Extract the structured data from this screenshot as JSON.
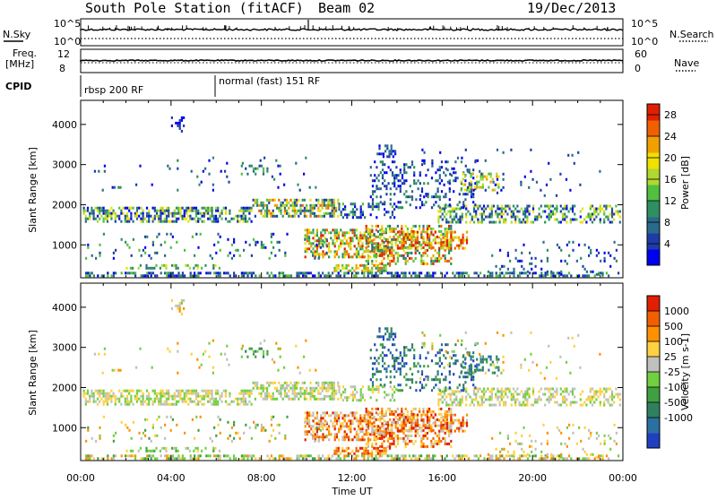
{
  "header": {
    "station": "South Pole Station (fitACF)",
    "beam": "Beam 02",
    "date": "19/Dec/2013"
  },
  "aux": {
    "nsky_label": "N.Sky",
    "nsearch_label": "N.Search",
    "freq_label_line1": "Freq.",
    "freq_label_line2": "[MHz]",
    "nave_label": "Nave",
    "cpid_label": "CPID",
    "power_ticks": [
      "10^5",
      "10^0"
    ],
    "power_ticks_right": [
      "10^5",
      "10^0"
    ],
    "freq_ticks": [
      "12",
      "8"
    ],
    "nave_ticks": [
      "60",
      "0"
    ],
    "cpid_1": "rbsp 200 RF",
    "cpid_2": "normal (fast) 151 RF"
  },
  "chart_data": [
    {
      "type": "heatmap",
      "title": "",
      "xlabel": "Time UT",
      "ylabel": "Slant Range [km]",
      "xlim": [
        0,
        24
      ],
      "ylim": [
        180,
        4600
      ],
      "x_ticks": [
        "00:00",
        "04:00",
        "08:00",
        "12:00",
        "16:00",
        "20:00",
        "00:00"
      ],
      "y_ticks": [
        "1000",
        "2000",
        "3000",
        "4000"
      ],
      "y_tick_values": [
        1000,
        2000,
        3000,
        4000
      ],
      "colorbar": {
        "label": "Power [dB]",
        "ticks": [
          "4",
          "8",
          "12",
          "16",
          "20",
          "24",
          "28"
        ],
        "range": [
          0,
          30
        ],
        "colors": [
          "#0000f0",
          "#1e3ca8",
          "#2a6a8a",
          "#2e8f60",
          "#50c040",
          "#b0d830",
          "#f0e000",
          "#f0a000",
          "#f06000",
          "#e02000"
        ]
      }
    },
    {
      "type": "heatmap",
      "title": "",
      "xlabel": "Time UT",
      "ylabel": "Slant Range [km]",
      "xlim": [
        0,
        24
      ],
      "ylim": [
        180,
        4600
      ],
      "x_ticks": [
        "00:00",
        "04:00",
        "08:00",
        "12:00",
        "16:00",
        "20:00",
        "00:00"
      ],
      "y_ticks": [
        "1000",
        "2000",
        "3000",
        "4000"
      ],
      "y_tick_values": [
        1000,
        2000,
        3000,
        4000
      ],
      "colorbar": {
        "label": "Velocity [m s-1]",
        "ticks": [
          "1000",
          "500",
          "100",
          "25",
          "-25",
          "-100",
          "-500",
          "-1000"
        ],
        "colors": [
          "#2040c0",
          "#2a70a0",
          "#308060",
          "#40a040",
          "#70d040",
          "#c0c0bc",
          "#ffd040",
          "#ff9000",
          "#f06000",
          "#e02000"
        ]
      }
    }
  ]
}
